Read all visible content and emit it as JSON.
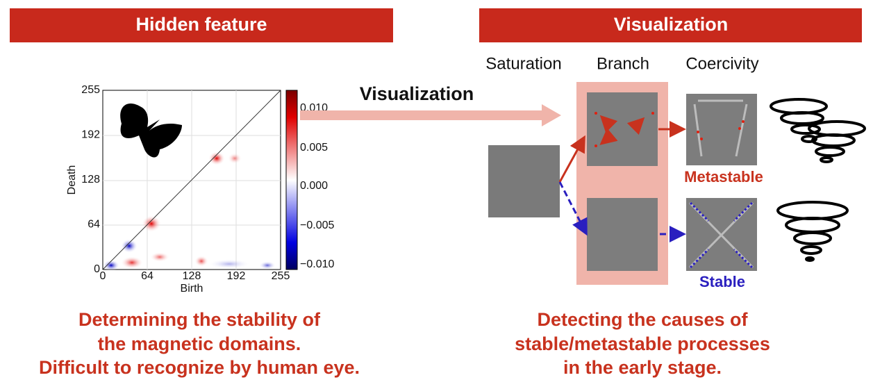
{
  "left_panel": {
    "header": "Hidden feature",
    "plot": {
      "x_label": "Birth",
      "y_label": "Death",
      "x_ticks": [
        "0",
        "64",
        "128",
        "192",
        "255"
      ],
      "y_ticks": [
        "0",
        "64",
        "128",
        "192",
        "255"
      ],
      "colorbar_ticks": [
        "0.010",
        "0.005",
        "0.000",
        "−0.005",
        "−0.010"
      ]
    },
    "caption": [
      "Determining the stability of",
      "the magnetic domains.",
      "Difficult to recognize by human eye."
    ]
  },
  "arrow_label": "Visualization",
  "right_panel": {
    "header": "Visualization",
    "columns": [
      "Saturation",
      "Branch",
      "Coercivity"
    ],
    "labels": {
      "metastable": "Metastable",
      "stable": "Stable"
    },
    "caption": [
      "Detecting the causes of",
      "stable/metastable processes",
      "in the early stage."
    ]
  }
}
